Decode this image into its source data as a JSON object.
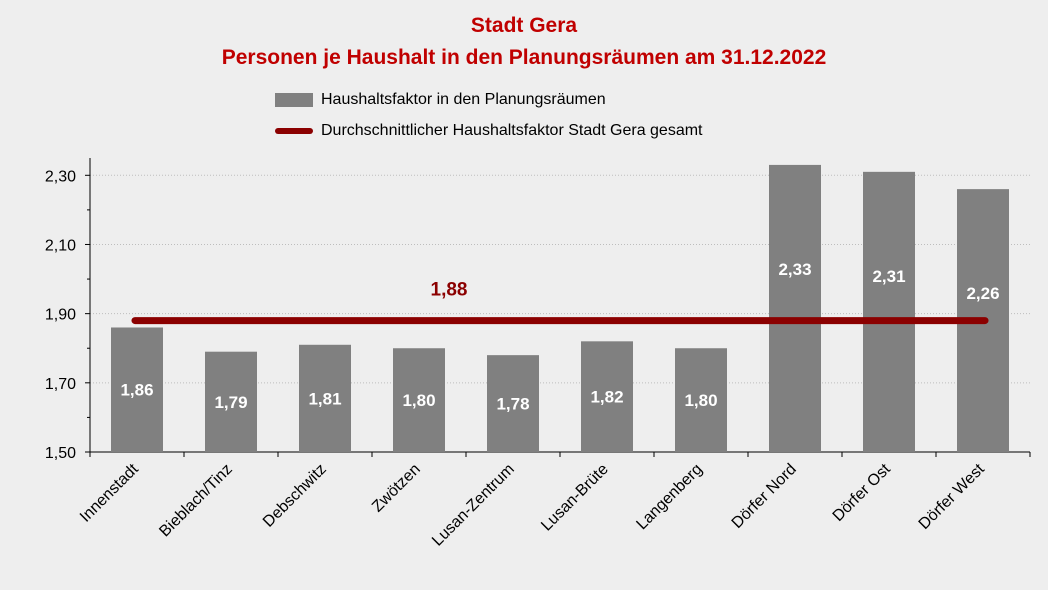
{
  "chart_data": {
    "type": "bar",
    "title": "Stadt Gera",
    "subtitle": "Personen je Haushalt in den Planungsräumen am 31.12.2022",
    "categories": [
      "Innenstadt",
      "Bieblach/Tinz",
      "Debschwitz",
      "Zwötzen",
      "Lusan-Zentrum",
      "Lusan-Brüte",
      "Langenberg",
      "Dörfer Nord",
      "Dörfer Ost",
      "Dörfer West"
    ],
    "series": [
      {
        "name": "Haushaltsfaktor in den Planungsräumen",
        "values": [
          1.86,
          1.79,
          1.81,
          1.8,
          1.78,
          1.82,
          1.8,
          2.33,
          2.31,
          2.26
        ],
        "labels": [
          "1,86",
          "1,79",
          "1,81",
          "1,80",
          "1,78",
          "1,82",
          "1,80",
          "2,33",
          "2,31",
          "2,26"
        ],
        "color": "#808080"
      }
    ],
    "reference_line": {
      "name": "Durchschnittlicher Haushaltsfaktor Stadt Gera gesamt",
      "value": 1.88,
      "label": "1,88",
      "color": "#8b0000"
    },
    "ylim": [
      1.5,
      2.35
    ],
    "yticks": [
      1.5,
      1.7,
      1.9,
      2.1,
      2.3
    ],
    "ytick_labels": [
      "1,50",
      "1,70",
      "1,90",
      "2,10",
      "2,30"
    ],
    "grid": true,
    "legend_position": "top-center",
    "label_color": "#ffffff",
    "title_color": "#c00000"
  }
}
